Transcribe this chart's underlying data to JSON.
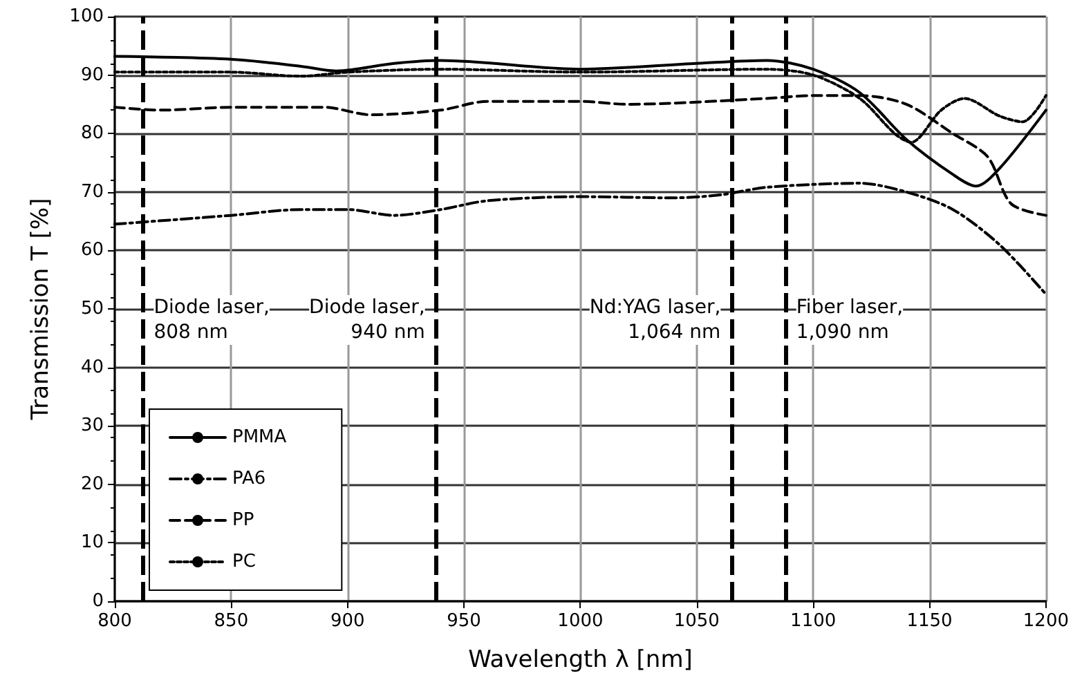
{
  "chart_data": {
    "type": "line",
    "xlabel": "Wavelength λ [nm]",
    "ylabel": "Transmission T [%]",
    "xlim": [
      800,
      1200
    ],
    "xticks": [
      800,
      850,
      900,
      950,
      1000,
      1050,
      1100,
      1150,
      1200
    ],
    "ylim": [
      0,
      100
    ],
    "yticks": [
      0,
      10,
      20,
      30,
      40,
      50,
      60,
      70,
      80,
      90,
      100
    ],
    "grid": true,
    "legend": "bottom left",
    "marker": "none",
    "series": [
      {
        "name": "PMMA",
        "color": "#000000",
        "line_style": "solid",
        "x": [
          800,
          850,
          880,
          895,
          920,
          940,
          1000,
          1050,
          1080,
          1100,
          1120,
          1140,
          1160,
          1170,
          1180,
          1200
        ],
        "values": [
          93.2,
          92.7,
          91.5,
          90.7,
          92,
          92.5,
          91,
          92,
          92.5,
          91,
          87,
          79,
          73,
          71,
          74,
          84
        ]
      },
      {
        "name": "PA6",
        "color": "#000000",
        "line_style": "dashdot",
        "x": [
          800,
          850,
          880,
          900,
          920,
          940,
          960,
          1000,
          1040,
          1060,
          1080,
          1120,
          1140,
          1160,
          1180,
          1200
        ],
        "values": [
          64.5,
          66,
          67,
          67,
          66,
          67,
          68.5,
          69.2,
          69,
          69.5,
          70.8,
          71.5,
          70,
          67,
          61,
          52.5
        ]
      },
      {
        "name": "PP",
        "color": "#000000",
        "line_style": "dashed",
        "x": [
          800,
          820,
          850,
          890,
          910,
          940,
          960,
          1000,
          1020,
          1080,
          1100,
          1120,
          1140,
          1160,
          1175,
          1185,
          1200
        ],
        "values": [
          84.5,
          84,
          84.5,
          84.5,
          83.2,
          84,
          85.5,
          85.5,
          85,
          86,
          86.5,
          86.5,
          85,
          80,
          76,
          68,
          66
        ]
      },
      {
        "name": "PC",
        "color": "#000000",
        "line_style": "dotted",
        "x": [
          800,
          850,
          880,
          900,
          940,
          1000,
          1080,
          1100,
          1120,
          1135,
          1142,
          1155,
          1165,
          1180,
          1190,
          1200
        ],
        "values": [
          90.5,
          90.5,
          89.8,
          90.5,
          91,
          90.5,
          91,
          90,
          86,
          80,
          78.5,
          84,
          86,
          83,
          82,
          86.5
        ]
      }
    ],
    "ref_lines": [
      {
        "axis": "x",
        "value": 812,
        "label": "Diode laser,\n808 nm",
        "color": "#000000",
        "line_style": "dashed"
      },
      {
        "axis": "x",
        "value": 938,
        "label": "Diode laser,\n940 nm",
        "color": "#000000",
        "line_style": "dashed"
      },
      {
        "axis": "x",
        "value": 1065,
        "label": "Nd:YAG laser,\n1,064 nm",
        "color": "#000000",
        "line_style": "dashed"
      },
      {
        "axis": "x",
        "value": 1088,
        "label": "Fiber laser,\n1,090 nm",
        "color": "#000000",
        "line_style": "dashed"
      }
    ]
  }
}
